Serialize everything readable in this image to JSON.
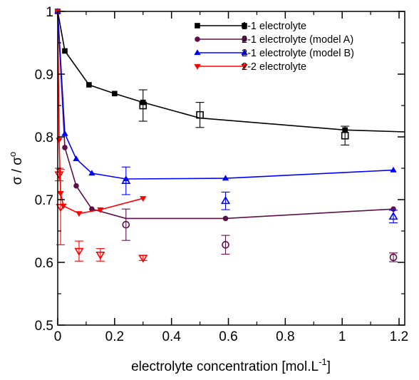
{
  "chart_data": {
    "type": "line",
    "xlabel": "electrolyte concentration [mol.L",
    "xlabel_sup": "-1",
    "xlabel_suffix": "]",
    "ylabel": "σ / σ",
    "ylabel_sup": "o",
    "xlim": [
      0,
      1.22
    ],
    "ylim": [
      0.5,
      1.0
    ],
    "xticks": [
      0,
      0.2,
      0.4,
      0.6,
      0.8,
      1,
      1.2
    ],
    "xtick_labels": [
      "0",
      "0.2",
      "0.4",
      "0.6",
      "0.8",
      "1",
      "1.2"
    ],
    "yticks": [
      0.5,
      0.6,
      0.7,
      0.8,
      0.9,
      1
    ],
    "ytick_labels": [
      "0.5",
      "0.6",
      "0.7",
      "0.8",
      "0.9",
      "1"
    ],
    "legend_position": "top-right",
    "series": [
      {
        "name": "1-1 electrolyte",
        "color": "#000000",
        "marker": "square",
        "x": [
          0.0,
          0.025,
          0.11,
          0.2,
          0.3,
          0.5,
          1.01,
          1.22
        ],
        "y": [
          1.0,
          0.937,
          0.883,
          0.869,
          0.855,
          0.83,
          0.811,
          0.808
        ],
        "points": [
          {
            "x": 0.0,
            "y": 1.0
          },
          {
            "x": 0.025,
            "y": 0.937
          },
          {
            "x": 0.11,
            "y": 0.883
          },
          {
            "x": 0.2,
            "y": 0.869
          },
          {
            "x": 0.3,
            "y": 0.855
          },
          {
            "x": 1.01,
            "y": 0.811
          }
        ],
        "open_points": [
          {
            "x": 0.3,
            "y": 0.85,
            "err": 0.025
          },
          {
            "x": 0.5,
            "y": 0.835,
            "err": 0.02
          },
          {
            "x": 1.01,
            "y": 0.802,
            "err": 0.015
          }
        ]
      },
      {
        "name": "2-1 electrolyte (model A)",
        "color": "#5c1048",
        "marker": "circle",
        "x": [
          0.0,
          0.025,
          0.065,
          0.12,
          0.24,
          0.59,
          1.18
        ],
        "y": [
          1.0,
          0.783,
          0.722,
          0.685,
          0.67,
          0.67,
          0.685
        ],
        "points": [
          {
            "x": 0.0,
            "y": 1.0
          },
          {
            "x": 0.025,
            "y": 0.783
          },
          {
            "x": 0.065,
            "y": 0.722
          },
          {
            "x": 0.12,
            "y": 0.685
          },
          {
            "x": 0.59,
            "y": 0.67
          },
          {
            "x": 1.18,
            "y": 0.685
          }
        ],
        "open_points": [
          {
            "x": 0.24,
            "y": 0.66,
            "err": 0.025
          },
          {
            "x": 0.59,
            "y": 0.628,
            "err": 0.015
          },
          {
            "x": 1.18,
            "y": 0.608,
            "err": 0.007
          }
        ]
      },
      {
        "name": "2-1 electrolyte (model B)",
        "color": "#0000ff",
        "marker": "triangle-up",
        "x": [
          0.0,
          0.025,
          0.065,
          0.12,
          0.24,
          0.59,
          1.18
        ],
        "y": [
          1.0,
          0.805,
          0.765,
          0.742,
          0.733,
          0.734,
          0.747
        ],
        "points": [
          {
            "x": 0.0,
            "y": 1.0
          },
          {
            "x": 0.025,
            "y": 0.805
          },
          {
            "x": 0.065,
            "y": 0.765
          },
          {
            "x": 0.12,
            "y": 0.742
          },
          {
            "x": 0.24,
            "y": 0.733
          },
          {
            "x": 0.59,
            "y": 0.734
          },
          {
            "x": 1.18,
            "y": 0.747
          }
        ],
        "open_points": [
          {
            "x": 0.24,
            "y": 0.73,
            "err": 0.022
          },
          {
            "x": 0.59,
            "y": 0.698,
            "err": 0.014
          },
          {
            "x": 1.18,
            "y": 0.673,
            "err": 0.01
          }
        ]
      },
      {
        "name": "2-2 electrolyte",
        "color": "#ff0000",
        "marker": "triangle-down",
        "x": [
          0.0,
          0.005,
          0.01,
          0.02,
          0.075,
          0.15,
          0.3
        ],
        "y": [
          1.0,
          0.795,
          0.71,
          0.69,
          0.678,
          0.684,
          0.702
        ],
        "points": [
          {
            "x": 0.0,
            "y": 1.0
          },
          {
            "x": 0.005,
            "y": 0.795
          },
          {
            "x": 0.01,
            "y": 0.71
          },
          {
            "x": 0.02,
            "y": 0.69
          },
          {
            "x": 0.075,
            "y": 0.678
          },
          {
            "x": 0.15,
            "y": 0.684
          },
          {
            "x": 0.3,
            "y": 0.702
          }
        ],
        "open_points": [
          {
            "x": 0.005,
            "y": 0.74,
            "err": 0.01
          },
          {
            "x": 0.01,
            "y": 0.688,
            "err": 0.06
          },
          {
            "x": 0.075,
            "y": 0.618,
            "err": 0.016
          },
          {
            "x": 0.15,
            "y": 0.612,
            "err": 0.01
          },
          {
            "x": 0.3,
            "y": 0.607,
            "err": 0.004
          }
        ]
      }
    ]
  }
}
